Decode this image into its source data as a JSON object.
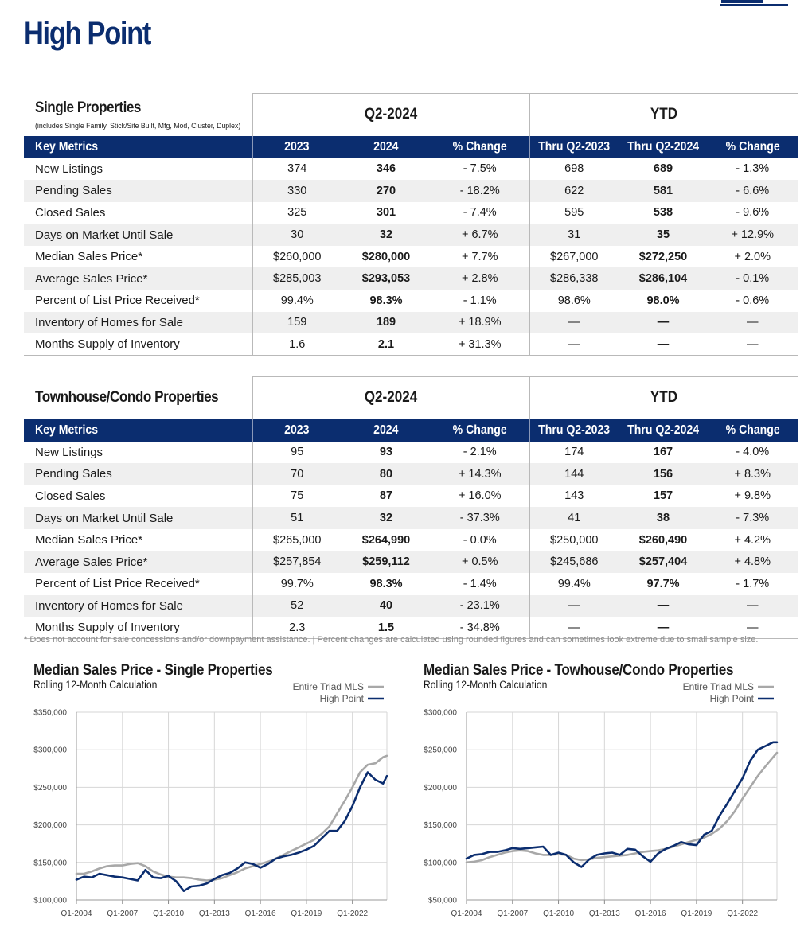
{
  "page": {
    "title": "High Point",
    "footnote": "* Does not account for sale concessions and/or downpayment assistance. | Percent changes are calculated using rounded figures and can sometimes look extreme due to small sample size."
  },
  "colors": {
    "brand_navy": "#0b2d6f",
    "triad_gray": "#a8a8a8",
    "row_alt": "#efefef"
  },
  "tables": [
    {
      "title": "Single Properties",
      "subtitle": "(includes Single Family, Stick/Site Built, Mfg, Mod, Cluster, Duplex)",
      "period_q": "Q2-2024",
      "period_ytd": "YTD",
      "headers": [
        "Key Metrics",
        "2023",
        "2024",
        "% Change",
        "Thru Q2-2023",
        "Thru Q2-2024",
        "% Change"
      ],
      "rows": [
        [
          "New Listings",
          "374",
          "346",
          "- 7.5%",
          "698",
          "689",
          "- 1.3%"
        ],
        [
          "Pending Sales",
          "330",
          "270",
          "- 18.2%",
          "622",
          "581",
          "- 6.6%"
        ],
        [
          "Closed Sales",
          "325",
          "301",
          "- 7.4%",
          "595",
          "538",
          "- 9.6%"
        ],
        [
          "Days on Market Until Sale",
          "30",
          "32",
          "+ 6.7%",
          "31",
          "35",
          "+ 12.9%"
        ],
        [
          "Median Sales Price*",
          "$260,000",
          "$280,000",
          "+ 7.7%",
          "$267,000",
          "$272,250",
          "+ 2.0%"
        ],
        [
          "Average Sales Price*",
          "$285,003",
          "$293,053",
          "+ 2.8%",
          "$286,338",
          "$286,104",
          "- 0.1%"
        ],
        [
          "Percent of List Price Received*",
          "99.4%",
          "98.3%",
          "- 1.1%",
          "98.6%",
          "98.0%",
          "- 0.6%"
        ],
        [
          "Inventory of Homes for Sale",
          "159",
          "189",
          "+ 18.9%",
          "—",
          "—",
          "—"
        ],
        [
          "Months Supply of Inventory",
          "1.6",
          "2.1",
          "+ 31.3%",
          "—",
          "—",
          "—"
        ]
      ]
    },
    {
      "title": "Townhouse/Condo Properties",
      "subtitle": "",
      "period_q": "Q2-2024",
      "period_ytd": "YTD",
      "headers": [
        "Key Metrics",
        "2023",
        "2024",
        "% Change",
        "Thru Q2-2023",
        "Thru Q2-2024",
        "% Change"
      ],
      "rows": [
        [
          "New Listings",
          "95",
          "93",
          "- 2.1%",
          "174",
          "167",
          "- 4.0%"
        ],
        [
          "Pending Sales",
          "70",
          "80",
          "+ 14.3%",
          "144",
          "156",
          "+ 8.3%"
        ],
        [
          "Closed Sales",
          "75",
          "87",
          "+ 16.0%",
          "143",
          "157",
          "+ 9.8%"
        ],
        [
          "Days on Market Until Sale",
          "51",
          "32",
          "- 37.3%",
          "41",
          "38",
          "- 7.3%"
        ],
        [
          "Median Sales Price*",
          "$265,000",
          "$264,990",
          "- 0.0%",
          "$250,000",
          "$260,490",
          "+ 4.2%"
        ],
        [
          "Average Sales Price*",
          "$257,854",
          "$259,112",
          "+ 0.5%",
          "$245,686",
          "$257,404",
          "+ 4.8%"
        ],
        [
          "Percent of List Price Received*",
          "99.7%",
          "98.3%",
          "- 1.4%",
          "99.4%",
          "97.7%",
          "- 1.7%"
        ],
        [
          "Inventory of Homes for Sale",
          "52",
          "40",
          "- 23.1%",
          "—",
          "—",
          "—"
        ],
        [
          "Months Supply of Inventory",
          "2.3",
          "1.5",
          "- 34.8%",
          "—",
          "—",
          "—"
        ]
      ]
    }
  ],
  "chart_data": [
    {
      "type": "line",
      "title": "Median Sales Price - Single Properties",
      "subtitle": "Rolling 12-Month Calculation",
      "xlabel": "",
      "ylabel": "",
      "grid": true,
      "legend_position": "top-right",
      "x_ticks": [
        "Q1-2004",
        "Q1-2007",
        "Q1-2010",
        "Q1-2013",
        "Q1-2016",
        "Q1-2019",
        "Q1-2022"
      ],
      "y_ticks": [
        "$100,000",
        "$150,000",
        "$200,000",
        "$250,000",
        "$300,000",
        "$350,000"
      ],
      "ylim": [
        100000,
        350000
      ],
      "x": [
        2004.0,
        2004.5,
        2005.0,
        2005.5,
        2006.0,
        2006.5,
        2007.0,
        2007.5,
        2008.0,
        2008.5,
        2009.0,
        2009.5,
        2010.0,
        2010.5,
        2011.0,
        2011.5,
        2012.0,
        2012.5,
        2013.0,
        2013.5,
        2014.0,
        2014.5,
        2015.0,
        2015.5,
        2016.0,
        2016.5,
        2017.0,
        2017.5,
        2018.0,
        2018.5,
        2019.0,
        2019.5,
        2020.0,
        2020.5,
        2021.0,
        2021.5,
        2022.0,
        2022.5,
        2023.0,
        2023.5,
        2024.0,
        2024.25
      ],
      "series": [
        {
          "name": "Entire Triad MLS",
          "color": "#a8a8a8",
          "values": [
            135000,
            135000,
            138000,
            142000,
            145000,
            146000,
            146000,
            148000,
            149000,
            145000,
            138000,
            134000,
            131000,
            130000,
            130000,
            129000,
            127000,
            126000,
            127000,
            129000,
            133000,
            137000,
            142000,
            145000,
            148000,
            151000,
            155000,
            160000,
            165000,
            170000,
            175000,
            180000,
            188000,
            198000,
            215000,
            232000,
            250000,
            270000,
            280000,
            282000,
            290000,
            292000
          ]
        },
        {
          "name": "High Point",
          "color": "#0b2d6f",
          "values": [
            127000,
            131000,
            130000,
            135000,
            133000,
            131000,
            130000,
            128000,
            126000,
            140000,
            130000,
            129000,
            132000,
            125000,
            112000,
            118000,
            119000,
            122000,
            128000,
            133000,
            136000,
            142000,
            150000,
            148000,
            143000,
            148000,
            155000,
            158000,
            160000,
            163000,
            167000,
            172000,
            182000,
            192000,
            192000,
            205000,
            225000,
            250000,
            270000,
            260000,
            255000,
            265000
          ]
        }
      ]
    },
    {
      "type": "line",
      "title": "Median Sales Price - Towhouse/Condo Properties",
      "subtitle": "Rolling 12-Month Calculation",
      "xlabel": "",
      "ylabel": "",
      "grid": true,
      "legend_position": "top-right",
      "x_ticks": [
        "Q1-2004",
        "Q1-2007",
        "Q1-2010",
        "Q1-2013",
        "Q1-2016",
        "Q1-2019",
        "Q1-2022"
      ],
      "y_ticks": [
        "$50,000",
        "$100,000",
        "$150,000",
        "$200,000",
        "$250,000",
        "$300,000"
      ],
      "ylim": [
        50000,
        300000
      ],
      "x": [
        2004.0,
        2004.5,
        2005.0,
        2005.5,
        2006.0,
        2006.5,
        2007.0,
        2007.5,
        2008.0,
        2008.5,
        2009.0,
        2009.5,
        2010.0,
        2010.5,
        2011.0,
        2011.5,
        2012.0,
        2012.5,
        2013.0,
        2013.5,
        2014.0,
        2014.5,
        2015.0,
        2015.5,
        2016.0,
        2016.5,
        2017.0,
        2017.5,
        2018.0,
        2018.5,
        2019.0,
        2019.5,
        2020.0,
        2020.5,
        2021.0,
        2021.5,
        2022.0,
        2022.5,
        2023.0,
        2023.5,
        2024.0,
        2024.25
      ],
      "series": [
        {
          "name": "Entire Triad MLS",
          "color": "#a8a8a8",
          "values": [
            100000,
            101000,
            103000,
            107000,
            110000,
            113000,
            115000,
            116000,
            115000,
            112000,
            110000,
            110000,
            111000,
            110000,
            105000,
            103000,
            104000,
            106000,
            107000,
            108000,
            109000,
            110000,
            112000,
            114000,
            115000,
            116000,
            118000,
            121000,
            124000,
            127000,
            130000,
            133000,
            138000,
            145000,
            155000,
            168000,
            185000,
            200000,
            215000,
            228000,
            240000,
            246000
          ]
        },
        {
          "name": "High Point",
          "color": "#0b2d6f",
          "values": [
            105000,
            110000,
            111000,
            114000,
            114000,
            116000,
            119000,
            118000,
            119000,
            120000,
            121000,
            110000,
            113000,
            110000,
            100000,
            94000,
            104000,
            110000,
            112000,
            113000,
            110000,
            118000,
            117000,
            108000,
            101000,
            112000,
            118000,
            122000,
            127000,
            124000,
            123000,
            137000,
            142000,
            162000,
            178000,
            195000,
            212000,
            235000,
            250000,
            255000,
            260000,
            260000
          ]
        }
      ]
    }
  ]
}
